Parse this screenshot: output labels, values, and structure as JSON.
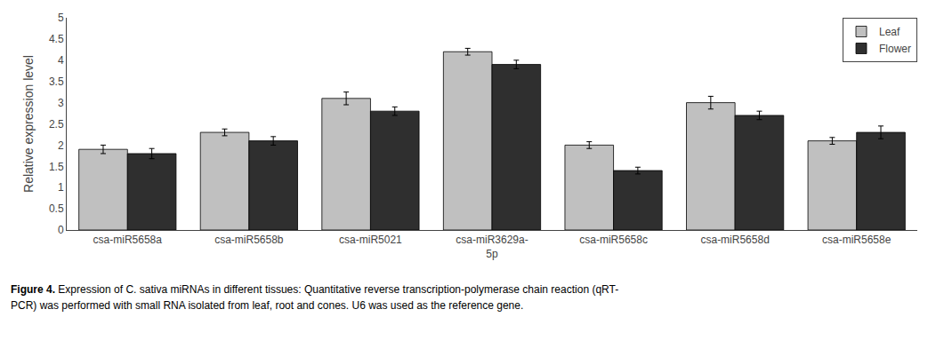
{
  "chart_data": {
    "type": "bar",
    "categories": [
      "csa-miR5658a",
      "csa-miR5658b",
      "csa-miR5021",
      "csa-miR3629a-\n5p",
      "csa-miR5658c",
      "csa-miR5658d",
      "csa-miR5658e"
    ],
    "series": [
      {
        "name": "Leaf",
        "color": "#c0c0c0",
        "values": [
          1.9,
          2.3,
          3.1,
          4.2,
          2.0,
          3.0,
          2.1
        ],
        "errors": [
          0.1,
          0.08,
          0.15,
          0.08,
          0.08,
          0.15,
          0.08
        ]
      },
      {
        "name": "Flower",
        "color": "#2f2f2f",
        "values": [
          1.8,
          2.1,
          2.8,
          3.9,
          1.4,
          2.7,
          2.3
        ],
        "errors": [
          0.12,
          0.1,
          0.1,
          0.1,
          0.08,
          0.1,
          0.15
        ]
      }
    ],
    "ylabel": "Relative expression level",
    "ylim": [
      0,
      5
    ],
    "yticks": [
      0,
      0.5,
      1,
      1.5,
      2,
      2.5,
      3,
      3.5,
      4,
      4.5,
      5
    ],
    "legend": "upper right",
    "grid": false,
    "annotations": [
      "Figure 4.",
      "Expression of C. sativa miRNAs in different tissues: Quantitative reverse transcription-polymerase chain reaction (qRT-",
      "PCR) was performed with small RNA isolated from leaf, root and cones. U6 was used as the reference gene."
    ]
  }
}
